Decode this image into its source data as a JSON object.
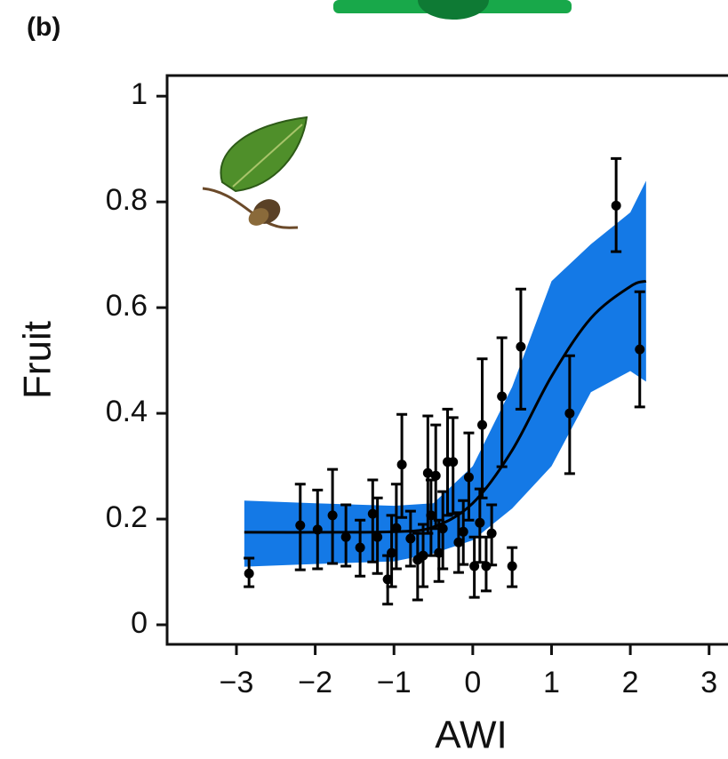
{
  "panel_label": "(b)",
  "chart_data": {
    "type": "scatter",
    "x_label": "AWI",
    "y_label": "Fruit",
    "x": [
      -2.84,
      -2.19,
      -1.97,
      -1.78,
      -1.61,
      -1.43,
      -1.27,
      -1.21,
      -1.08,
      -1.03,
      -0.9,
      -0.97,
      -0.79,
      -0.7,
      -0.63,
      -0.57,
      -0.53,
      -0.47,
      -0.43,
      -0.38,
      -0.32,
      -0.25,
      -0.18,
      -0.12,
      -0.05,
      0.02,
      0.09,
      0.12,
      0.17,
      0.24,
      0.37,
      0.5,
      0.61,
      1.23,
      1.82,
      2.12
    ],
    "values": [
      0.097,
      0.188,
      0.18,
      0.207,
      0.166,
      0.146,
      0.21,
      0.166,
      0.086,
      0.136,
      0.303,
      0.183,
      0.163,
      0.123,
      0.131,
      0.287,
      0.207,
      0.282,
      0.136,
      0.182,
      0.308,
      0.308,
      0.156,
      0.176,
      0.279,
      0.111,
      0.193,
      0.378,
      0.111,
      0.173,
      0.432,
      0.111,
      0.526,
      0.4,
      0.793,
      0.521
    ],
    "lower": [
      0.072,
      0.104,
      0.106,
      0.116,
      0.111,
      0.092,
      0.119,
      0.097,
      0.039,
      0.072,
      0.203,
      0.106,
      0.111,
      0.047,
      0.072,
      0.173,
      0.131,
      0.182,
      0.082,
      0.106,
      0.207,
      0.21,
      0.099,
      0.114,
      0.198,
      0.052,
      0.118,
      0.24,
      0.064,
      0.113,
      0.299,
      0.072,
      0.408,
      0.286,
      0.706,
      0.412
    ],
    "upper": [
      0.126,
      0.266,
      0.255,
      0.294,
      0.227,
      0.198,
      0.274,
      0.24,
      0.131,
      0.207,
      0.398,
      0.266,
      0.215,
      0.173,
      0.19,
      0.395,
      0.274,
      0.378,
      0.198,
      0.252,
      0.408,
      0.392,
      0.212,
      0.235,
      0.363,
      0.166,
      0.257,
      0.503,
      0.166,
      0.227,
      0.543,
      0.146,
      0.635,
      0.509,
      0.882,
      0.63
    ],
    "color": "#000000",
    "fit": {
      "x": [
        -2.9,
        -2,
        -1,
        -0.5,
        0,
        0.5,
        1,
        1.5,
        2,
        2.2
      ],
      "values": [
        0.175,
        0.175,
        0.176,
        0.185,
        0.23,
        0.33,
        0.47,
        0.58,
        0.64,
        0.65
      ],
      "lower": [
        0.11,
        0.115,
        0.12,
        0.135,
        0.16,
        0.22,
        0.3,
        0.44,
        0.48,
        0.46
      ],
      "upper": [
        0.235,
        0.23,
        0.225,
        0.23,
        0.3,
        0.45,
        0.65,
        0.72,
        0.78,
        0.84
      ],
      "color": "#000000",
      "band_color": "#1479e6"
    },
    "xlim": [
      -3.88,
      3.24
    ],
    "ylim": [
      -0.037,
      1.039
    ],
    "xticks": [
      {
        "value": -3,
        "label": "−3"
      },
      {
        "value": -2,
        "label": "−2"
      },
      {
        "value": -1,
        "label": "−1"
      },
      0,
      1,
      2,
      3
    ],
    "yticks": [
      0,
      0.2,
      0.4,
      0.6,
      0.8,
      1
    ]
  }
}
